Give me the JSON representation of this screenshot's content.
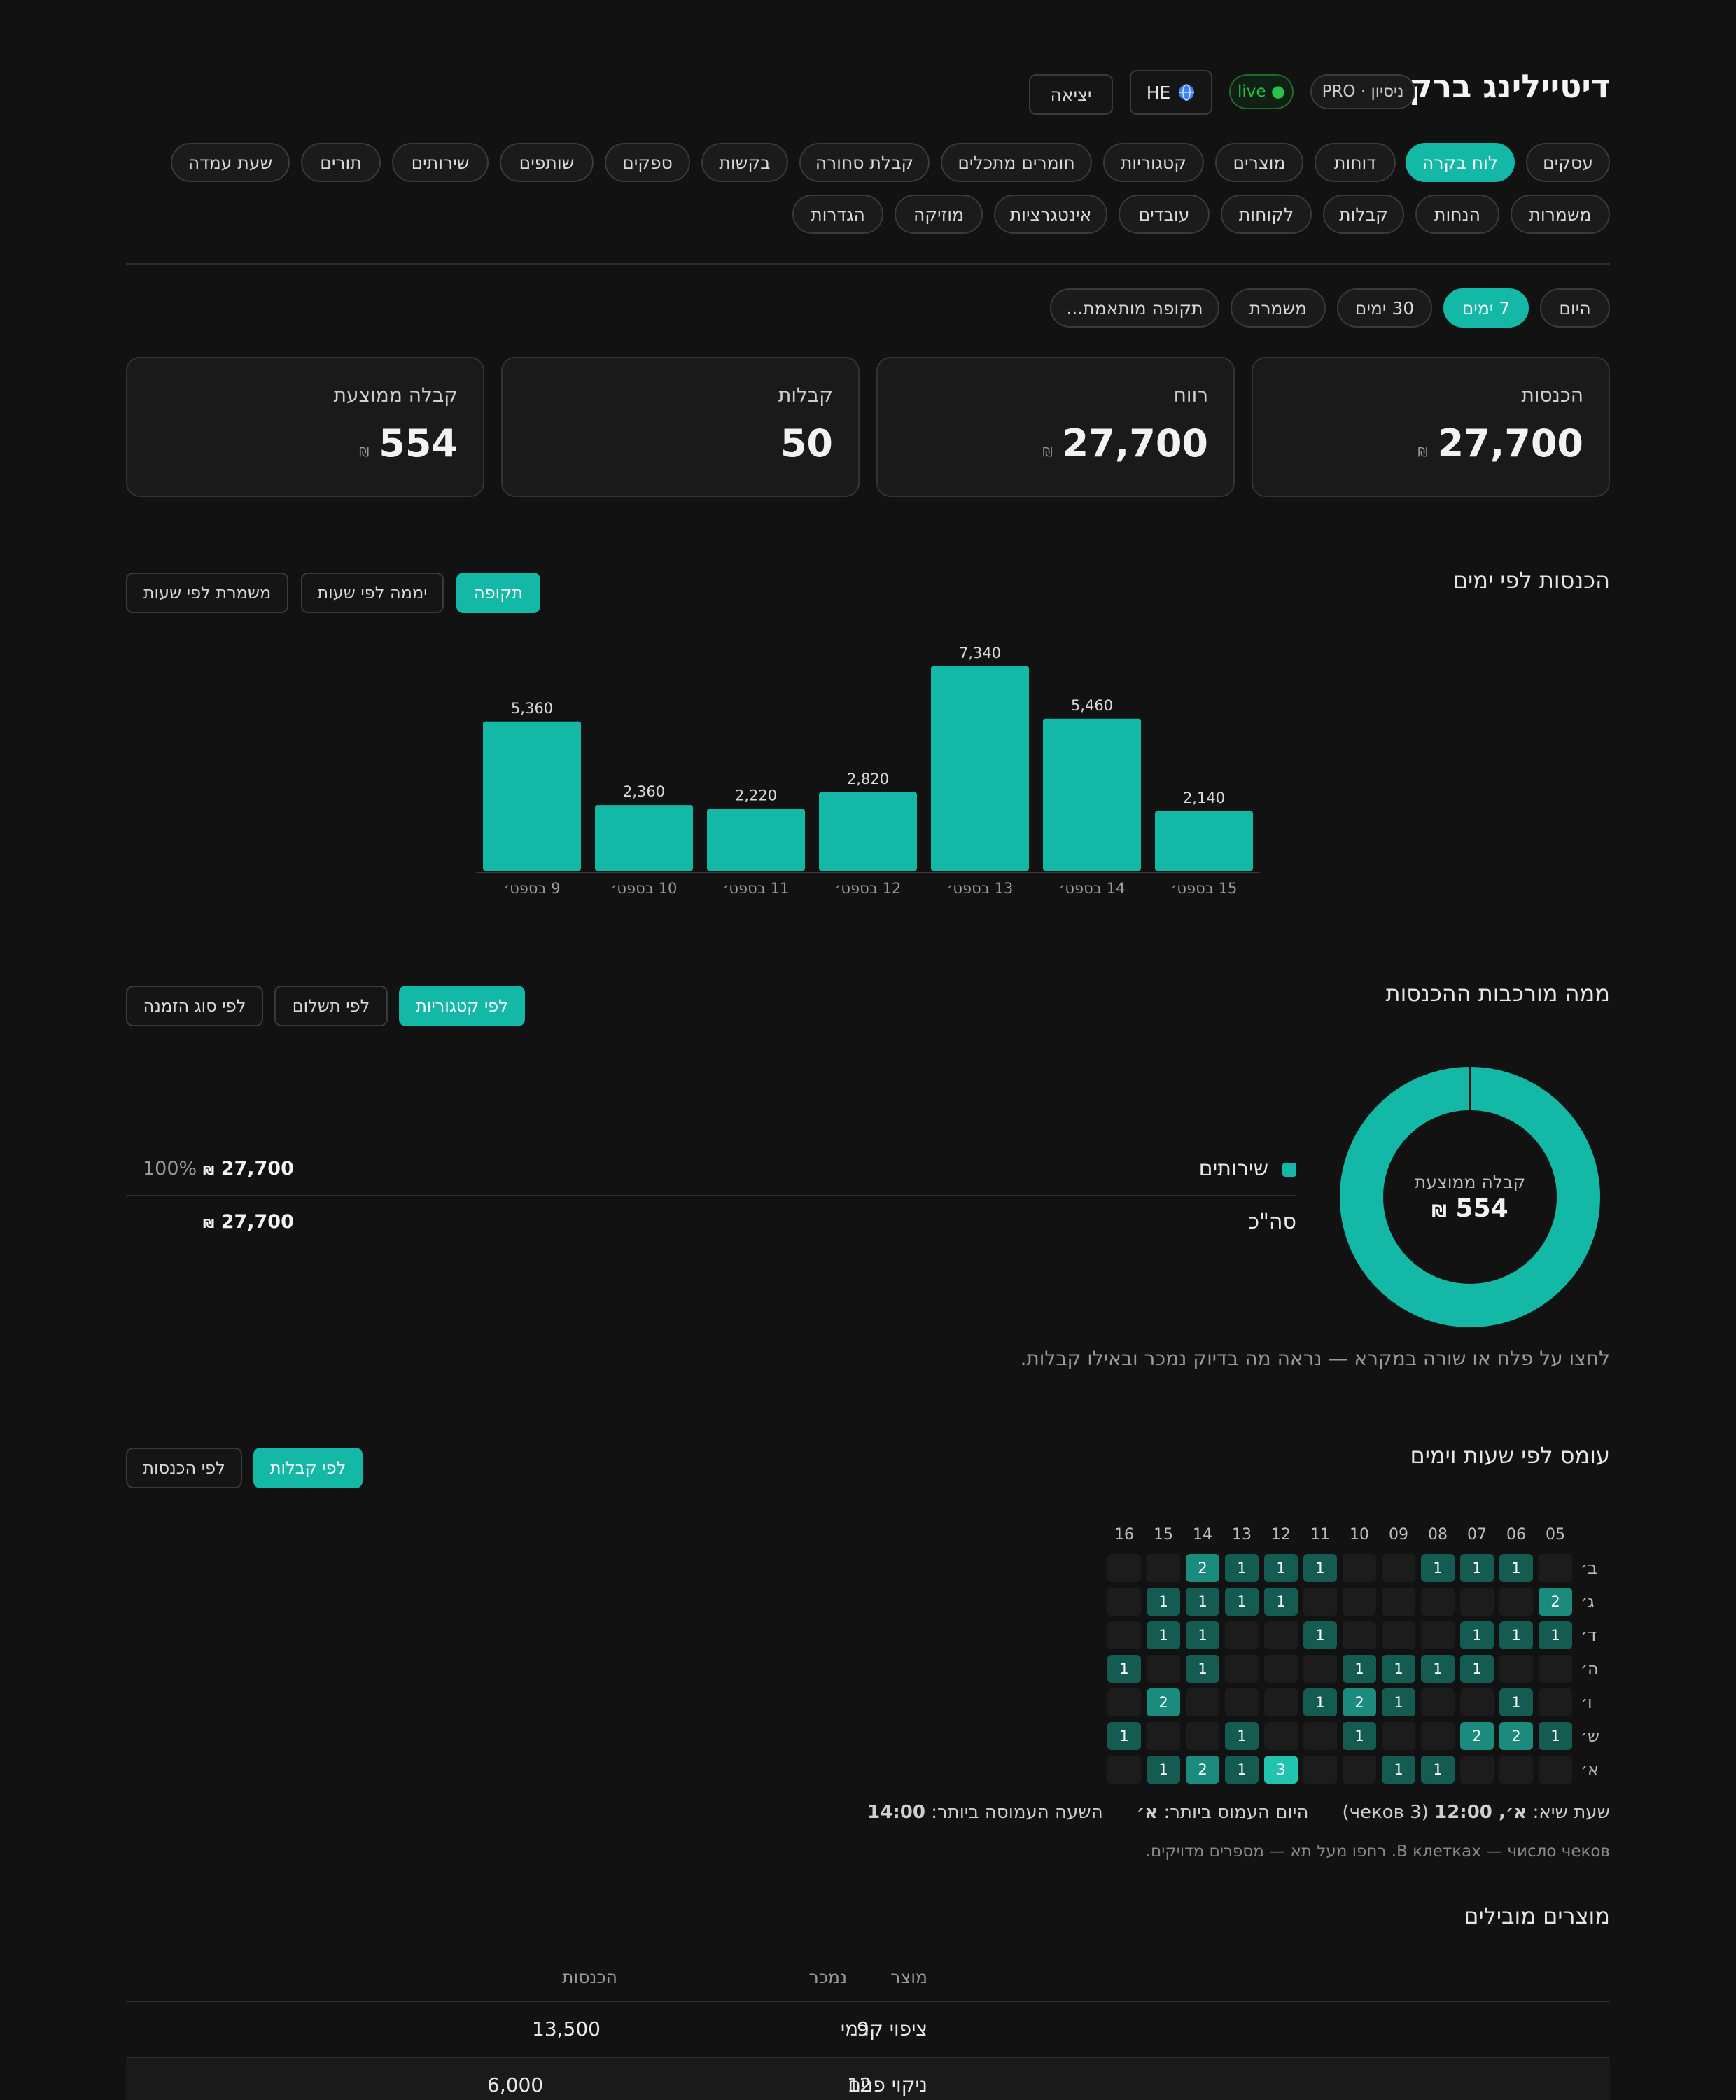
{
  "header": {
    "title": "דיטיילינג ברק",
    "plan_badge": "PRO · ניסיון",
    "live_badge": "live ●",
    "lang_label": "HE",
    "logout_label": "יציאה"
  },
  "nav": {
    "row1": [
      "עסקים",
      "לוח בקרה",
      "דוחות",
      "מוצרים",
      "קטגוריות",
      "חומרים מתכלים",
      "קבלת סחורה",
      "בקשות",
      "ספקים",
      "שותפים",
      "שירותים",
      "תורים",
      "שעת עמדה"
    ],
    "row2": [
      "משמרות",
      "הנחות",
      "קבלות",
      "לקוחות",
      "עובדים",
      "אינטגרציות",
      "מוזיקה",
      "הגדרות"
    ],
    "active": "לוח בקרה"
  },
  "periods": {
    "items": [
      "היום",
      "7 ימים",
      "30 ימים",
      "משמרת",
      "תקופה מותאמת..."
    ],
    "active": "7 ימים"
  },
  "kpis": [
    {
      "label": "הכנסות",
      "value": "27,700",
      "currency": "₪"
    },
    {
      "label": "רווח",
      "value": "27,700",
      "currency": "₪"
    },
    {
      "label": "קבלות",
      "value": "50",
      "currency": ""
    },
    {
      "label": "קבלה ממוצעת",
      "value": "554",
      "currency": "₪"
    }
  ],
  "revenue_by_day": {
    "title": "הכנסות לפי ימים",
    "tabs": [
      "תקופה",
      "יממה לפי שעות",
      "משמרת לפי שעות"
    ],
    "active_tab": "תקופה"
  },
  "chart_data": {
    "type": "bar",
    "categories": [
      "9 בספט׳",
      "10 בספט׳",
      "11 בספט׳",
      "12 בספט׳",
      "13 בספט׳",
      "14 בספט׳",
      "15 בספט׳"
    ],
    "values": [
      5360,
      2360,
      2220,
      2820,
      7340,
      5460,
      2140
    ],
    "value_labels": [
      "5,360",
      "2,360",
      "2,220",
      "2,820",
      "7,340",
      "5,460",
      "2,140"
    ],
    "title": "",
    "xlabel": "",
    "ylabel": "",
    "ylim": [
      0,
      7340
    ],
    "color": "#14b8a6",
    "grid": false
  },
  "composition": {
    "title": "ממה מורכבות ההכנסות",
    "tabs": [
      "לפי קטגוריות",
      "לפי תשלום",
      "לפי סוג הזמנה"
    ],
    "active_tab": "לפי קטגוריות",
    "donut_label": "קבלה ממוצעת",
    "donut_value": "554",
    "donut_currency": "₪",
    "slices": [
      {
        "name": "שירותים",
        "share": 1.0
      }
    ],
    "rows": [
      {
        "name": "שירותים",
        "amount": "27,700",
        "percent": "100%"
      }
    ],
    "total_label": "סה\"כ",
    "total_amount": "27,700",
    "currency": "₪",
    "hint": "לחצו על פלח או שורה במקרא — נראה מה בדיוק נמכר ובאילו קבלות."
  },
  "heatmap": {
    "title": "עומס לפי שעות וימים",
    "tabs": [
      "לפי קבלות",
      "לפי הכנסות"
    ],
    "active_tab": "לפי קבלות",
    "hours": [
      "05",
      "06",
      "07",
      "08",
      "09",
      "10",
      "11",
      "12",
      "13",
      "14",
      "15",
      "16"
    ],
    "days": [
      "ב׳",
      "ג׳",
      "ד׳",
      "ה׳",
      "ו׳",
      "ש׳",
      "א׳"
    ],
    "values": [
      [
        0,
        1,
        1,
        1,
        0,
        0,
        1,
        1,
        1,
        2,
        0,
        0
      ],
      [
        2,
        0,
        0,
        0,
        0,
        0,
        0,
        1,
        1,
        1,
        1,
        0
      ],
      [
        1,
        1,
        1,
        0,
        0,
        0,
        1,
        0,
        0,
        1,
        1,
        0
      ],
      [
        0,
        0,
        1,
        1,
        1,
        1,
        0,
        0,
        0,
        1,
        0,
        1
      ],
      [
        0,
        1,
        0,
        0,
        1,
        2,
        1,
        0,
        0,
        0,
        2,
        0
      ],
      [
        1,
        2,
        2,
        0,
        0,
        1,
        0,
        0,
        1,
        0,
        0,
        1
      ],
      [
        0,
        0,
        0,
        1,
        1,
        0,
        0,
        3,
        1,
        2,
        1,
        0
      ]
    ],
    "stat_peak_label": "שעת שיא:",
    "stat_peak_value": "א׳, 12:00",
    "stat_peak_note": "(3 чеков)",
    "stat_day_label": "היום העמוס ביותר:",
    "stat_day_value": "א׳",
    "stat_hour_label": "השעה העמוסה ביותר:",
    "stat_hour_value": "14:00",
    "note": "В клетках — число чеков. רחפו מעל תא — מספרים מדויקים."
  },
  "top_products": {
    "title": "מוצרים מובילים",
    "headers": {
      "product": "מוצר",
      "sold": "נמכר",
      "revenue": "הכנסות"
    },
    "rows": [
      {
        "product": "ציפוי קרמי",
        "sold": "9",
        "revenue": "13,500"
      },
      {
        "product": "ניקוי פנים",
        "sold": "12",
        "revenue": "6,000"
      }
    ]
  }
}
